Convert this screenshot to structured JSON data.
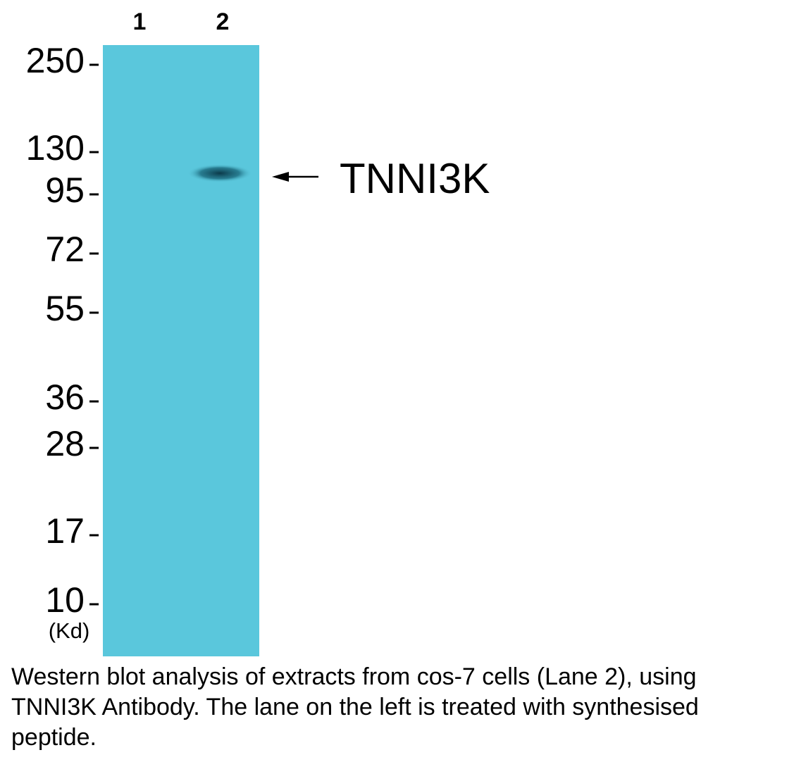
{
  "lanes": [
    "1",
    "2"
  ],
  "markers": [
    "250",
    "130",
    "95",
    "72",
    "55",
    "36",
    "28",
    "17",
    "10"
  ],
  "unit": "(Kd)",
  "band_label": "TNNI3K",
  "caption": "Western blot analysis of extracts from cos-7 cells (Lane 2), using TNNI3K Antibody. The lane on the left is treated with synthesised peptide."
}
